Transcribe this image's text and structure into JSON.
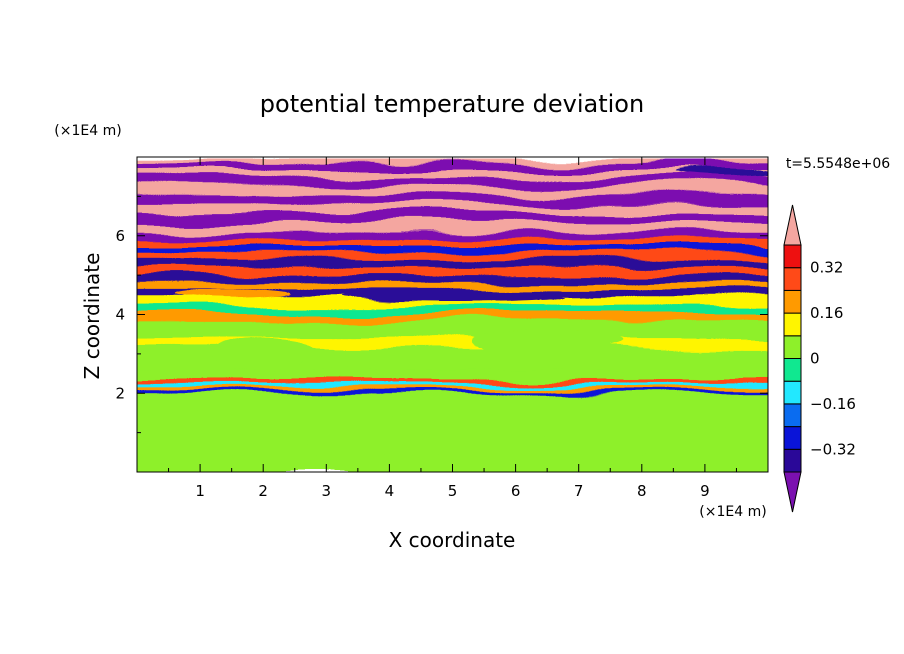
{
  "chart_data": {
    "type": "heatmap",
    "title": "potential temperature deviation",
    "xlabel": "X coordinate",
    "ylabel": "Z coordinate",
    "x_unit": "(×1E4 m)",
    "y_unit": "(×1E4 m)",
    "time_label": "t=5.5548e+06",
    "xlim": [
      0,
      10
    ],
    "ylim": [
      0,
      8
    ],
    "x_ticks": [
      "1",
      "2",
      "3",
      "4",
      "5",
      "6",
      "7",
      "8",
      "9"
    ],
    "y_ticks": [
      "2",
      "4",
      "6"
    ],
    "colorbar": {
      "labels": [
        "0.32",
        "0.16",
        "0",
        "−0.16",
        "−0.32"
      ],
      "label_values": [
        0.32,
        0.16,
        0,
        -0.16,
        -0.32
      ],
      "levels": [
        -0.4,
        -0.32,
        -0.24,
        -0.16,
        -0.08,
        0,
        0.08,
        0.16,
        0.24,
        0.32,
        0.4
      ],
      "colors": [
        "#7b10b0",
        "#2a0898",
        "#0a14d8",
        "#0a6cf0",
        "#22e8ff",
        "#10e890",
        "#8ef02a",
        "#fff500",
        "#ff9a00",
        "#ff4a18",
        "#ee1010",
        "#f4a6a0"
      ]
    },
    "bands": [
      {
        "z": 7.88,
        "v": 0.44
      },
      {
        "z": 7.75,
        "v": -0.44
      },
      {
        "z": 7.58,
        "v": 0.44
      },
      {
        "z": 7.4,
        "v": -0.44
      },
      {
        "z": 7.18,
        "v": 0.44
      },
      {
        "z": 6.95,
        "v": -0.44
      },
      {
        "z": 6.72,
        "v": 0.44
      },
      {
        "z": 6.5,
        "v": -0.44
      },
      {
        "z": 6.25,
        "v": 0.44
      },
      {
        "z": 6.0,
        "v": -0.44
      },
      {
        "z": 5.82,
        "v": 0.3
      },
      {
        "z": 5.65,
        "v": -0.3
      },
      {
        "z": 5.48,
        "v": 0.26
      },
      {
        "z": 5.3,
        "v": -0.4
      },
      {
        "z": 5.12,
        "v": 0.3
      },
      {
        "z": 4.95,
        "v": -0.36
      },
      {
        "z": 4.78,
        "v": 0.22
      },
      {
        "z": 4.6,
        "v": -0.38
      },
      {
        "z": 4.4,
        "v": 0.1
      },
      {
        "z": 4.15,
        "v": -0.06
      },
      {
        "z": 3.95,
        "v": 0.18
      },
      {
        "z": 3.75,
        "v": 0.04
      },
      {
        "z": 3.5,
        "v": 0.02
      },
      {
        "z": 3.3,
        "v": 0.12
      },
      {
        "z": 3.05,
        "v": 0.05
      },
      {
        "z": 2.8,
        "v": 0.03
      },
      {
        "z": 2.55,
        "v": 0.06
      },
      {
        "z": 2.35,
        "v": 0.3
      },
      {
        "z": 2.25,
        "v": -0.1
      },
      {
        "z": 2.15,
        "v": 0.2
      },
      {
        "z": 2.05,
        "v": -0.3
      },
      {
        "z": 1.95,
        "v": 0.06
      },
      {
        "z": 1.6,
        "v": 0.06
      },
      {
        "z": 1.0,
        "v": 0.05
      },
      {
        "z": 0.4,
        "v": 0.06
      },
      {
        "z": 0.0,
        "v": 0.06
      }
    ],
    "blobs": [
      {
        "x": 0.8,
        "z": 1.1,
        "rx": 0.45,
        "rz": 0.5,
        "v": 0.02
      },
      {
        "x": 3.4,
        "z": 0.9,
        "rx": 0.7,
        "rz": 0.7,
        "v": 0.02
      },
      {
        "x": 5.6,
        "z": 0.8,
        "rx": 0.8,
        "rz": 0.75,
        "v": 0.02
      },
      {
        "x": 7.3,
        "z": 0.9,
        "rx": 0.85,
        "rz": 0.8,
        "v": 0.02
      },
      {
        "x": 9.1,
        "z": 0.7,
        "rx": 0.5,
        "rz": 0.6,
        "v": 0.02
      },
      {
        "x": 2.0,
        "z": 3.0,
        "rx": 0.9,
        "rz": 0.35,
        "v": 0.02
      },
      {
        "x": 6.5,
        "z": 3.3,
        "rx": 1.2,
        "rz": 0.3,
        "v": 0.02
      },
      {
        "x": 5.0,
        "z": 4.45,
        "rx": 1.8,
        "rz": 0.12,
        "v": -0.33
      },
      {
        "x": 1.5,
        "z": 4.55,
        "rx": 0.9,
        "rz": 0.12,
        "v": 0.2
      },
      {
        "x": 9.3,
        "z": 7.55,
        "rx": 0.8,
        "rz": 0.12,
        "v": -0.36
      }
    ]
  }
}
